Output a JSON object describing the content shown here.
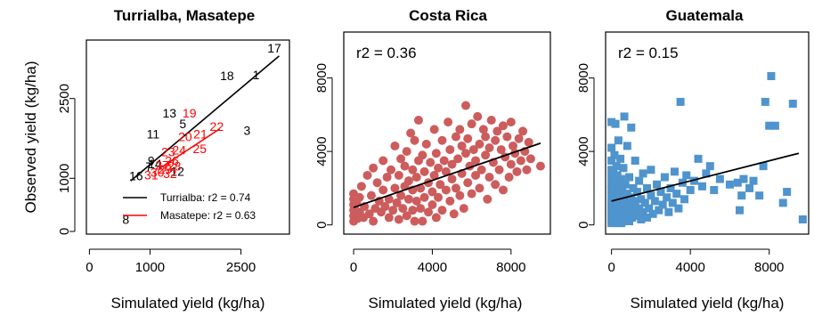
{
  "chart_data": [
    {
      "type": "scatter",
      "title": "Turrialba, Masatepe",
      "xlabel": "Simulated yield (kg/ha)",
      "ylabel": "Observed yield (kg/ha)",
      "xlim": [
        -50,
        3300
      ],
      "ylim": [
        -50,
        3600
      ],
      "xticks": [
        0,
        1000,
        2500
      ],
      "yticks": [
        0,
        1000,
        2500
      ],
      "grid": false,
      "legend_position": "bottom-right",
      "series": [
        {
          "name": "Turrialba",
          "color": "#000000",
          "points": [
            {
              "label": "17",
              "x": 3050,
              "y": 3450
            },
            {
              "label": "1",
              "x": 2750,
              "y": 2950
            },
            {
              "label": "18",
              "x": 2270,
              "y": 2930
            },
            {
              "label": "13",
              "x": 1320,
              "y": 2230
            },
            {
              "label": "5",
              "x": 1540,
              "y": 2030
            },
            {
              "label": "3",
              "x": 2600,
              "y": 1900
            },
            {
              "label": "11",
              "x": 1050,
              "y": 1830
            },
            {
              "label": "9",
              "x": 1020,
              "y": 1330
            },
            {
              "label": "14",
              "x": 1080,
              "y": 1270
            },
            {
              "label": "7",
              "x": 980,
              "y": 1220
            },
            {
              "label": "16",
              "x": 770,
              "y": 1050
            },
            {
              "label": "12",
              "x": 1450,
              "y": 1130
            },
            {
              "label": "8",
              "x": 600,
              "y": 230
            }
          ],
          "fit": [
            [
              680,
              950
            ],
            [
              3130,
              3300
            ]
          ],
          "r2": "0.74"
        },
        {
          "name": "Masatepe",
          "color": "#ff0000",
          "points": [
            {
              "label": "19",
              "x": 1650,
              "y": 2230
            },
            {
              "label": "22",
              "x": 2100,
              "y": 1980
            },
            {
              "label": "20",
              "x": 1580,
              "y": 1780
            },
            {
              "label": "21",
              "x": 1830,
              "y": 1830
            },
            {
              "label": "23",
              "x": 1300,
              "y": 1500
            },
            {
              "label": "24",
              "x": 1480,
              "y": 1530
            },
            {
              "label": "25",
              "x": 1820,
              "y": 1560
            },
            {
              "label": "26",
              "x": 1360,
              "y": 1330
            },
            {
              "label": "27",
              "x": 1200,
              "y": 1250
            },
            {
              "label": "28",
              "x": 1400,
              "y": 1230
            },
            {
              "label": "29",
              "x": 1250,
              "y": 1170
            },
            {
              "label": "30",
              "x": 1120,
              "y": 1110
            },
            {
              "label": "31",
              "x": 1020,
              "y": 1060
            },
            {
              "label": "32",
              "x": 1330,
              "y": 1090
            }
          ],
          "fit": [
            [
              1150,
              1180
            ],
            [
              2150,
              1930
            ]
          ],
          "r2": "0.63"
        }
      ],
      "legend": [
        {
          "text": "Turrialba: r2 =  0.74",
          "color": "#000000"
        },
        {
          "text": "Masatepe: r2 =  0.63",
          "color": "#ff0000"
        }
      ]
    },
    {
      "type": "scatter",
      "title": "Costa Rica",
      "xlabel": "Simulated yield (kg/ha)",
      "ylabel": "",
      "xlim": [
        -500,
        10000
      ],
      "ylim": [
        -500,
        10500
      ],
      "xticks": [
        0,
        4000,
        8000
      ],
      "yticks": [
        0,
        4000,
        8000
      ],
      "grid": false,
      "annotation": "r2 = 0.36",
      "marker": "circle",
      "color": "#cd5c5c",
      "fit": [
        [
          0,
          950
        ],
        [
          9500,
          4450
        ]
      ],
      "points": [
        [
          0,
          200
        ],
        [
          0,
          500
        ],
        [
          0,
          800
        ],
        [
          0,
          1100
        ],
        [
          0,
          1400
        ],
        [
          0,
          1700
        ],
        [
          50,
          300
        ],
        [
          50,
          900
        ],
        [
          100,
          600
        ],
        [
          150,
          1200
        ],
        [
          200,
          350
        ],
        [
          300,
          700
        ],
        [
          300,
          1500
        ],
        [
          400,
          2100
        ],
        [
          500,
          400
        ],
        [
          550,
          1000
        ],
        [
          700,
          2700
        ],
        [
          800,
          600
        ],
        [
          900,
          1600
        ],
        [
          1000,
          200
        ],
        [
          1000,
          3100
        ],
        [
          1100,
          900
        ],
        [
          1200,
          2300
        ],
        [
          1300,
          1300
        ],
        [
          1400,
          700
        ],
        [
          1500,
          1900
        ],
        [
          1500,
          3500
        ],
        [
          1600,
          1000
        ],
        [
          1700,
          2600
        ],
        [
          1800,
          400
        ],
        [
          1800,
          1400
        ],
        [
          1900,
          3000
        ],
        [
          2000,
          800
        ],
        [
          2100,
          2000
        ],
        [
          2100,
          4300
        ],
        [
          2200,
          1200
        ],
        [
          2300,
          300
        ],
        [
          2300,
          2700
        ],
        [
          2400,
          1600
        ],
        [
          2400,
          3600
        ],
        [
          2500,
          900
        ],
        [
          2600,
          2100
        ],
        [
          2600,
          3200
        ],
        [
          2700,
          500
        ],
        [
          2700,
          4000
        ],
        [
          2800,
          1400
        ],
        [
          2800,
          2400
        ],
        [
          2900,
          5000
        ],
        [
          3000,
          800
        ],
        [
          3000,
          1900
        ],
        [
          3000,
          3000
        ],
        [
          3100,
          200
        ],
        [
          3100,
          4600
        ],
        [
          3200,
          1300
        ],
        [
          3200,
          2600
        ],
        [
          3300,
          3500
        ],
        [
          3300,
          5700
        ],
        [
          3400,
          900
        ],
        [
          3400,
          2000
        ],
        [
          3500,
          3800
        ],
        [
          3500,
          200
        ],
        [
          3600,
          1500
        ],
        [
          3600,
          2900
        ],
        [
          3700,
          4400
        ],
        [
          3800,
          700
        ],
        [
          3800,
          2300
        ],
        [
          3900,
          3400
        ],
        [
          4000,
          1100
        ],
        [
          4000,
          1800
        ],
        [
          4100,
          5200
        ],
        [
          4100,
          2700
        ],
        [
          4200,
          400
        ],
        [
          4200,
          3900
        ],
        [
          4300,
          1500
        ],
        [
          4300,
          3100
        ],
        [
          4400,
          2200
        ],
        [
          4500,
          4600
        ],
        [
          4500,
          800
        ],
        [
          4600,
          3500
        ],
        [
          4700,
          1900
        ],
        [
          4700,
          2900
        ],
        [
          4800,
          5600
        ],
        [
          4900,
          1300
        ],
        [
          4900,
          4100
        ],
        [
          5000,
          2500
        ],
        [
          5000,
          3300
        ],
        [
          5100,
          600
        ],
        [
          5200,
          4800
        ],
        [
          5200,
          2000
        ],
        [
          5300,
          3600
        ],
        [
          5400,
          1600
        ],
        [
          5400,
          5200
        ],
        [
          5500,
          2800
        ],
        [
          5500,
          4300
        ],
        [
          5600,
          900
        ],
        [
          5700,
          3900
        ],
        [
          5700,
          6500
        ],
        [
          5800,
          2300
        ],
        [
          5800,
          4700
        ],
        [
          5900,
          3200
        ],
        [
          6000,
          5500
        ],
        [
          6000,
          1700
        ],
        [
          6100,
          4100
        ],
        [
          6200,
          2700
        ],
        [
          6200,
          3500
        ],
        [
          6300,
          5900
        ],
        [
          6400,
          4400
        ],
        [
          6400,
          2000
        ],
        [
          6500,
          3000
        ],
        [
          6600,
          5200
        ],
        [
          6700,
          3800
        ],
        [
          6700,
          4800
        ],
        [
          6800,
          1400
        ],
        [
          6900,
          2600
        ],
        [
          6900,
          4200
        ],
        [
          7000,
          5700
        ],
        [
          7100,
          3400
        ],
        [
          7200,
          4600
        ],
        [
          7200,
          2200
        ],
        [
          7300,
          5100
        ],
        [
          7400,
          3000
        ],
        [
          7500,
          4100
        ],
        [
          7600,
          5400
        ],
        [
          7600,
          1900
        ],
        [
          7700,
          3700
        ],
        [
          7800,
          4800
        ],
        [
          7900,
          2600
        ],
        [
          8000,
          3300
        ],
        [
          8000,
          5600
        ],
        [
          8100,
          4300
        ],
        [
          8200,
          3900
        ],
        [
          8300,
          2900
        ],
        [
          8400,
          4700
        ],
        [
          8500,
          3500
        ],
        [
          8600,
          5100
        ],
        [
          8700,
          4000
        ],
        [
          8800,
          3000
        ],
        [
          8900,
          4500
        ],
        [
          9000,
          3600
        ],
        [
          9500,
          3200
        ]
      ]
    },
    {
      "type": "scatter",
      "title": "Guatemala",
      "xlabel": "Simulated yield (kg/ha)",
      "ylabel": "",
      "xlim": [
        -300,
        10000
      ],
      "ylim": [
        -500,
        10500
      ],
      "xticks": [
        0,
        4000,
        8000
      ],
      "yticks": [
        0,
        4000,
        8000
      ],
      "grid": false,
      "annotation": "r2 = 0.15",
      "marker": "square",
      "color": "#4f94cd",
      "fit": [
        [
          0,
          1300
        ],
        [
          9500,
          3900
        ]
      ],
      "points": [
        [
          0,
          100
        ],
        [
          0,
          300
        ],
        [
          0,
          500
        ],
        [
          0,
          700
        ],
        [
          0,
          900
        ],
        [
          0,
          1100
        ],
        [
          0,
          1300
        ],
        [
          0,
          1600
        ],
        [
          0,
          1900
        ],
        [
          0,
          2200
        ],
        [
          0,
          2600
        ],
        [
          0,
          3000
        ],
        [
          0,
          3500
        ],
        [
          0,
          4200
        ],
        [
          0,
          5600
        ],
        [
          50,
          200
        ],
        [
          50,
          600
        ],
        [
          50,
          1000
        ],
        [
          50,
          1500
        ],
        [
          50,
          2400
        ],
        [
          100,
          400
        ],
        [
          100,
          800
        ],
        [
          100,
          1200
        ],
        [
          100,
          2000
        ],
        [
          100,
          2900
        ],
        [
          150,
          300
        ],
        [
          150,
          1700
        ],
        [
          150,
          3800
        ],
        [
          200,
          100
        ],
        [
          200,
          700
        ],
        [
          200,
          1400
        ],
        [
          200,
          2300
        ],
        [
          200,
          5500
        ],
        [
          250,
          500
        ],
        [
          250,
          1000
        ],
        [
          250,
          3200
        ],
        [
          300,
          200
        ],
        [
          300,
          900
        ],
        [
          300,
          1800
        ],
        [
          300,
          2700
        ],
        [
          350,
          600
        ],
        [
          350,
          1300
        ],
        [
          350,
          4600
        ],
        [
          400,
          300
        ],
        [
          400,
          1100
        ],
        [
          400,
          2100
        ],
        [
          450,
          800
        ],
        [
          450,
          3600
        ],
        [
          500,
          100
        ],
        [
          500,
          1500
        ],
        [
          500,
          2500
        ],
        [
          550,
          500
        ],
        [
          550,
          1900
        ],
        [
          600,
          1000
        ],
        [
          600,
          3100
        ],
        [
          650,
          700
        ],
        [
          650,
          5900
        ],
        [
          700,
          300
        ],
        [
          700,
          1400
        ],
        [
          700,
          2200
        ],
        [
          750,
          900
        ],
        [
          800,
          500
        ],
        [
          800,
          1700
        ],
        [
          800,
          4300
        ],
        [
          850,
          1200
        ],
        [
          900,
          200
        ],
        [
          900,
          2600
        ],
        [
          950,
          800
        ],
        [
          1000,
          1500
        ],
        [
          1000,
          5300
        ],
        [
          1050,
          400
        ],
        [
          1100,
          1100
        ],
        [
          1100,
          2000
        ],
        [
          1150,
          700
        ],
        [
          1200,
          1300
        ],
        [
          1200,
          3500
        ],
        [
          1300,
          500
        ],
        [
          1300,
          1800
        ],
        [
          1400,
          900
        ],
        [
          1400,
          2400
        ],
        [
          1500,
          300
        ],
        [
          1500,
          1400
        ],
        [
          1600,
          700
        ],
        [
          1600,
          2800
        ],
        [
          1700,
          1200
        ],
        [
          1800,
          400
        ],
        [
          1800,
          2000
        ],
        [
          1900,
          900
        ],
        [
          2000,
          1600
        ],
        [
          2000,
          3000
        ],
        [
          2100,
          600
        ],
        [
          2200,
          1300
        ],
        [
          2300,
          2200
        ],
        [
          2400,
          800
        ],
        [
          2500,
          1800
        ],
        [
          2600,
          1100
        ],
        [
          2700,
          2600
        ],
        [
          2800,
          1500
        ],
        [
          2900,
          700
        ],
        [
          3000,
          2000
        ],
        [
          3100,
          1200
        ],
        [
          3200,
          2900
        ],
        [
          3300,
          1700
        ],
        [
          3400,
          900
        ],
        [
          3500,
          6700
        ],
        [
          3600,
          2300
        ],
        [
          3700,
          1400
        ],
        [
          3800,
          2700
        ],
        [
          4000,
          1900
        ],
        [
          4200,
          2400
        ],
        [
          4400,
          3600
        ],
        [
          4600,
          2100
        ],
        [
          4800,
          2800
        ],
        [
          5000,
          3200
        ],
        [
          5200,
          1900
        ],
        [
          5500,
          2500
        ],
        [
          6000,
          2200
        ],
        [
          6400,
          2300
        ],
        [
          6500,
          800
        ],
        [
          6600,
          1600
        ],
        [
          6700,
          2500
        ],
        [
          7000,
          2000
        ],
        [
          7200,
          2400
        ],
        [
          7500,
          1600
        ],
        [
          7700,
          3200
        ],
        [
          7800,
          6700
        ],
        [
          8000,
          5400
        ],
        [
          8100,
          8100
        ],
        [
          8300,
          5400
        ],
        [
          8700,
          1200
        ],
        [
          8900,
          1800
        ],
        [
          9200,
          6600
        ],
        [
          9700,
          300
        ]
      ]
    }
  ]
}
